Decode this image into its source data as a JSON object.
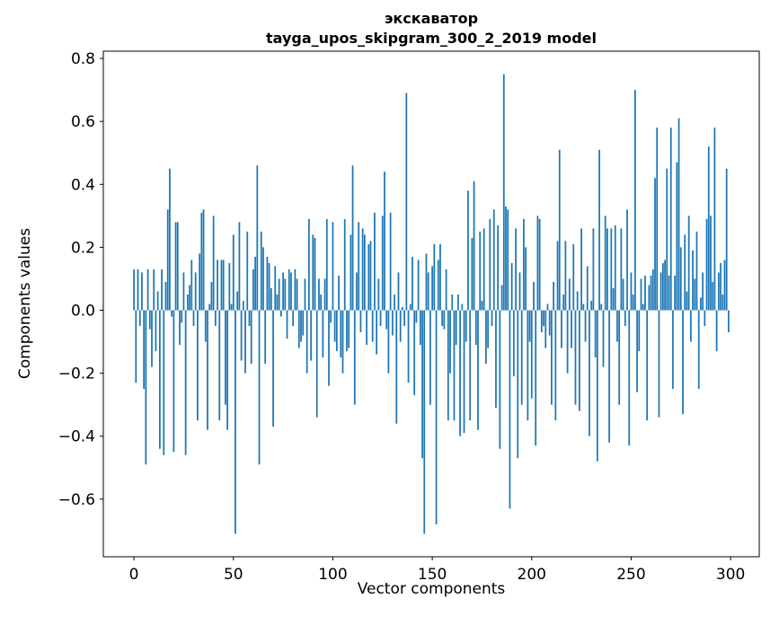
{
  "chart_data": {
    "type": "bar",
    "title_line1": "экскаватор",
    "title_line2": "tayga_upos_skipgram_300_2_2019 model",
    "xlabel": "Vector components",
    "ylabel": "Components values",
    "bar_color": "#1f77b4",
    "background_color": "#ffffff",
    "grid": false,
    "legend": false,
    "xlim": [
      -15.4,
      314.4
    ],
    "ylim": [
      -0.783,
      0.823
    ],
    "xticks": [
      0,
      50,
      100,
      150,
      200,
      250,
      300
    ],
    "yticks": [
      -0.6,
      -0.4,
      -0.2,
      0.0,
      0.2,
      0.4,
      0.6,
      0.8
    ],
    "ytick_labels": [
      "−0.6",
      "−0.4",
      "−0.2",
      "0.0",
      "0.2",
      "0.4",
      "0.6",
      "0.8"
    ],
    "values": [
      0.13,
      -0.23,
      0.13,
      -0.05,
      0.12,
      -0.25,
      -0.49,
      0.13,
      -0.06,
      -0.18,
      0.13,
      -0.13,
      0.06,
      -0.44,
      0.13,
      -0.46,
      0.09,
      0.32,
      0.45,
      -0.02,
      -0.45,
      0.28,
      0.28,
      -0.11,
      -0.04,
      0.12,
      -0.46,
      0.05,
      0.08,
      0.16,
      -0.05,
      0.12,
      -0.35,
      0.18,
      0.31,
      0.32,
      -0.1,
      -0.38,
      0.02,
      0.09,
      0.3,
      -0.05,
      0.16,
      -0.35,
      0.16,
      0.16,
      -0.3,
      -0.38,
      0.15,
      0.02,
      0.24,
      -0.71,
      0.06,
      0.28,
      -0.16,
      0.03,
      -0.2,
      0.25,
      -0.05,
      -0.17,
      0.13,
      0.17,
      0.46,
      -0.49,
      0.25,
      0.2,
      -0.17,
      0.17,
      0.15,
      0.07,
      -0.37,
      0.14,
      0.05,
      0.1,
      -0.02,
      0.12,
      0.1,
      -0.09,
      0.13,
      0.12,
      -0.05,
      0.13,
      0.1,
      -0.12,
      -0.1,
      -0.08,
      0.1,
      -0.2,
      0.29,
      -0.16,
      0.24,
      0.23,
      -0.34,
      0.1,
      0.05,
      -0.15,
      0.1,
      0.29,
      -0.24,
      -0.04,
      0.28,
      -0.1,
      -0.13,
      0.11,
      -0.15,
      -0.2,
      0.29,
      -0.13,
      -0.12,
      0.24,
      0.46,
      -0.3,
      0.12,
      0.28,
      -0.07,
      0.26,
      0.24,
      -0.11,
      0.21,
      0.22,
      -0.1,
      0.31,
      -0.14,
      0.1,
      -0.05,
      0.3,
      0.44,
      -0.06,
      -0.2,
      0.31,
      -0.08,
      0.05,
      -0.36,
      0.12,
      -0.1,
      0.01,
      -0.05,
      0.69,
      -0.23,
      0.02,
      0.17,
      -0.27,
      -0.04,
      0.16,
      -0.11,
      -0.47,
      -0.71,
      0.18,
      0.12,
      -0.3,
      0.14,
      0.21,
      -0.68,
      0.16,
      0.21,
      -0.05,
      -0.06,
      0.13,
      -0.35,
      -0.2,
      0.05,
      -0.35,
      -0.11,
      0.05,
      -0.4,
      0.02,
      -0.39,
      -0.1,
      0.38,
      -0.35,
      0.23,
      0.41,
      -0.11,
      -0.38,
      0.25,
      0.03,
      0.26,
      -0.17,
      -0.12,
      0.29,
      -0.05,
      0.32,
      -0.31,
      0.27,
      -0.44,
      0.08,
      0.75,
      0.33,
      0.32,
      -0.63,
      0.15,
      -0.21,
      0.26,
      -0.47,
      0.12,
      -0.3,
      0.29,
      0.2,
      -0.35,
      -0.1,
      -0.28,
      0.09,
      -0.43,
      0.3,
      0.29,
      -0.07,
      -0.05,
      -0.12,
      0.02,
      -0.08,
      -0.3,
      0.09,
      -0.35,
      0.22,
      0.51,
      -0.12,
      0.05,
      0.22,
      -0.2,
      0.1,
      -0.12,
      0.21,
      -0.3,
      0.06,
      -0.32,
      0.26,
      0.02,
      -0.1,
      0.14,
      -0.4,
      0.03,
      0.26,
      -0.15,
      -0.48,
      0.51,
      0.02,
      -0.18,
      0.3,
      0.26,
      -0.42,
      0.26,
      0.07,
      0.27,
      -0.1,
      -0.3,
      0.26,
      0.1,
      -0.05,
      0.32,
      -0.43,
      0.12,
      0.05,
      0.7,
      -0.26,
      -0.13,
      0.1,
      0.02,
      0.11,
      -0.35,
      0.08,
      0.11,
      0.13,
      0.42,
      0.58,
      -0.34,
      0.12,
      0.15,
      0.16,
      0.45,
      0.11,
      0.58,
      -0.25,
      0.11,
      0.47,
      0.61,
      0.2,
      -0.33,
      0.24,
      0.06,
      0.3,
      -0.1,
      0.19,
      0.1,
      0.25,
      -0.25,
      0.04,
      0.12,
      -0.05,
      0.29,
      0.52,
      0.3,
      0.09,
      0.58,
      -0.13,
      0.12,
      0.15,
      0.05,
      0.16,
      0.45,
      -0.07
    ]
  }
}
